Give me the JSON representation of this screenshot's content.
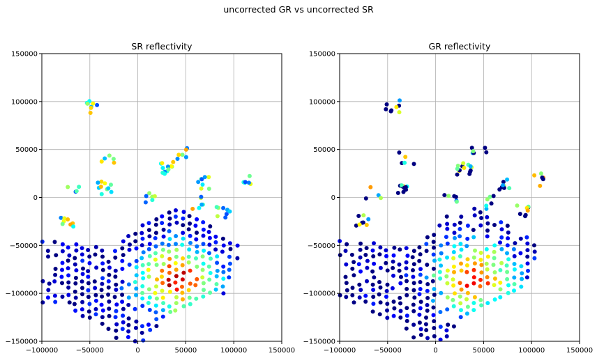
{
  "figure": {
    "suptitle": "uncorrected GR vs uncorrected SR"
  },
  "chart_data": [
    {
      "type": "scatter",
      "title": "SR reflectivity",
      "xlabel": "",
      "ylabel": "",
      "xlim": [
        -100000,
        150000
      ],
      "ylim": [
        -150000,
        150000
      ],
      "x_ticks": [
        -100000,
        -50000,
        0,
        50000,
        100000,
        150000
      ],
      "y_ticks": [
        -150000,
        -100000,
        -50000,
        0,
        50000,
        100000,
        150000
      ],
      "x_tick_labels": [
        "−100000",
        "−50000",
        "0",
        "50000",
        "100000",
        "150000"
      ],
      "y_tick_labels": [
        "−150000",
        "−100000",
        "−50000",
        "0",
        "50000",
        "100000",
        "150000"
      ],
      "grid": true,
      "colormap": "jet",
      "color_range": [
        0,
        1
      ],
      "points": []
    },
    {
      "type": "scatter",
      "title": "GR reflectivity",
      "xlabel": "",
      "ylabel": "",
      "xlim": [
        -100000,
        150000
      ],
      "ylim": [
        -150000,
        150000
      ],
      "x_ticks": [
        -100000,
        -50000,
        0,
        50000,
        100000,
        150000
      ],
      "y_ticks": [
        -150000,
        -100000,
        -50000,
        0,
        50000,
        100000,
        150000
      ],
      "x_tick_labels": [
        "−100000",
        "−50000",
        "0",
        "50000",
        "100000",
        "150000"
      ],
      "y_tick_labels": [
        "−150000",
        "−100000",
        "−50000",
        "0",
        "50000",
        "100000",
        "150000"
      ],
      "grid": true,
      "colormap": "jet",
      "color_range": [
        0,
        1
      ],
      "points": []
    }
  ]
}
